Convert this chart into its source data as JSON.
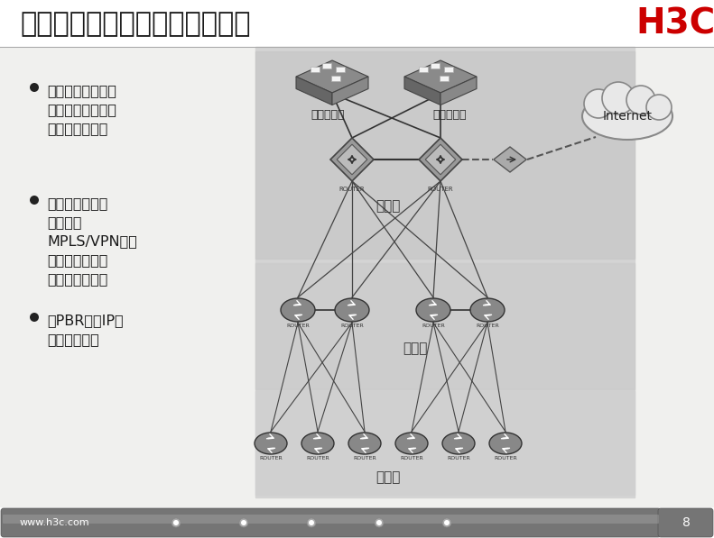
{
  "title": "大规模网络的路由可管理性需求",
  "h3c_logo": "H3C",
  "footer_text": "www.h3c.com",
  "page_num": "8",
  "bullet_points": [
    "调整路由开销、路\n由属性和优先级以\n影响协议的选路",
    "用路由过滤、路\n由策略、\nMPLS/VPN等技\n术来控制路由的\n学习和传播范围",
    "用PBR控制IP报\n文的定向转发"
  ],
  "server_label1": "业务服务器",
  "server_label2": "办公服务器",
  "layer_labels": [
    "核心层",
    "汇聚层",
    "接入层"
  ],
  "internet_label": "Internet",
  "title_fontsize": 22,
  "bullet_fontsize": 11.5,
  "label_fontsize": 10
}
